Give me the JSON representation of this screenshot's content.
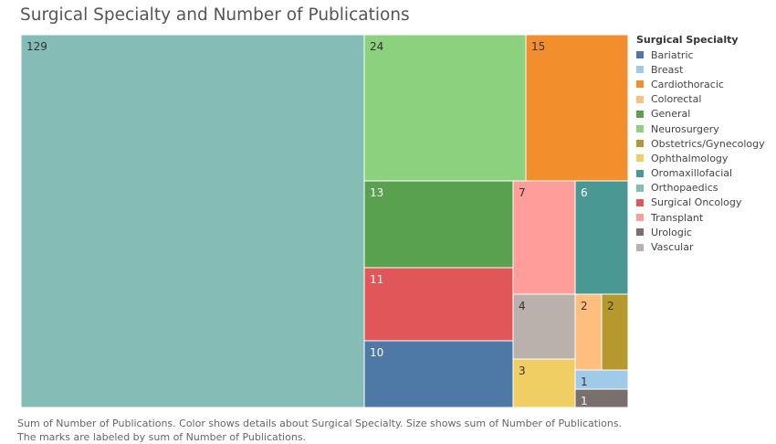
{
  "title": "Surgical Specialty and Number of Publications",
  "caption": {
    "line1": "Sum of Number of Publications.  Color shows details about Surgical Specialty.  Size shows sum of Number of Publications.",
    "line2": "The marks are labeled by sum of Number of Publications."
  },
  "chart_data": {
    "type": "treemap",
    "title": "Surgical Specialty and Number of Publications",
    "legend_title": "Surgical Specialty",
    "legend_placement": "right",
    "series": [
      {
        "name": "Bariatric",
        "value": 10,
        "color": "#4e79a7"
      },
      {
        "name": "Breast",
        "value": 1,
        "color": "#a0cbe8"
      },
      {
        "name": "Cardiothoracic",
        "value": 15,
        "color": "#f28e2b"
      },
      {
        "name": "Colorectal",
        "value": 2,
        "color": "#ffbe7d"
      },
      {
        "name": "General",
        "value": 13,
        "color": "#59a14f"
      },
      {
        "name": "Neurosurgery",
        "value": 24,
        "color": "#8cd17d"
      },
      {
        "name": "Obstetrics/Gynecology",
        "value": 2,
        "color": "#b6992d"
      },
      {
        "name": "Ophthalmology",
        "value": 3,
        "color": "#f1ce63"
      },
      {
        "name": "Oromaxillofacial",
        "value": 6,
        "color": "#499894"
      },
      {
        "name": "Orthopaedics",
        "value": 129,
        "color": "#86bcb6"
      },
      {
        "name": "Surgical Oncology",
        "value": 11,
        "color": "#e15759"
      },
      {
        "name": "Transplant",
        "value": 7,
        "color": "#ff9d9a"
      },
      {
        "name": "Urologic",
        "value": 1,
        "color": "#79706e"
      },
      {
        "name": "Vascular",
        "value": 4,
        "color": "#bab0ac"
      }
    ]
  }
}
